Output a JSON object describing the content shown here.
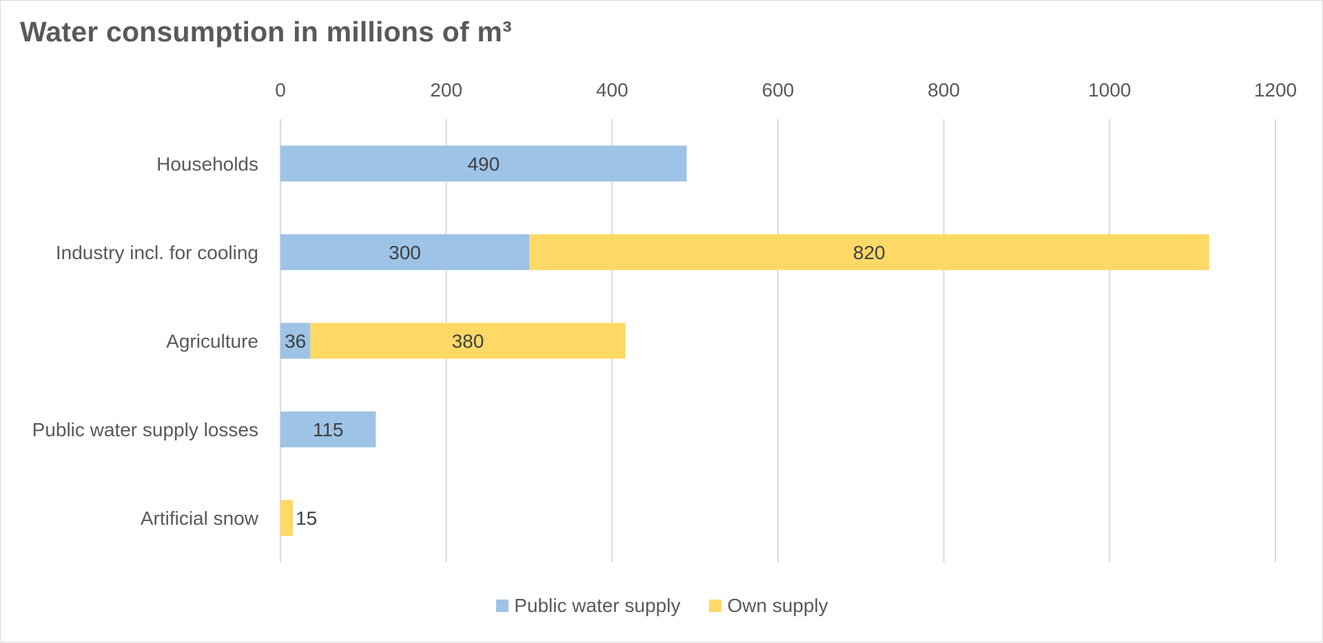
{
  "chart_data": {
    "type": "bar",
    "orientation": "horizontal",
    "stacked": true,
    "title": "Water consumption in millions of m³",
    "categories": [
      "Households",
      "Industry incl. for cooling",
      "Agriculture",
      "Public water supply losses",
      "Artificial snow"
    ],
    "series": [
      {
        "name": "Public water supply",
        "color": "#9dc3e6",
        "values": [
          490,
          300,
          36,
          115,
          null
        ],
        "labels": [
          "490",
          "300",
          "36",
          "115",
          ""
        ]
      },
      {
        "name": "Own supply",
        "color": "#ffd966",
        "values": [
          null,
          820,
          380,
          null,
          15
        ],
        "labels": [
          "",
          "820",
          "380",
          "",
          "15"
        ]
      }
    ],
    "xlim": [
      0,
      1200
    ],
    "xticks": [
      "0",
      "200",
      "400",
      "600",
      "800",
      "1000",
      "1200"
    ],
    "xaxis_position": "top",
    "grid": true,
    "legend": "bottom"
  }
}
